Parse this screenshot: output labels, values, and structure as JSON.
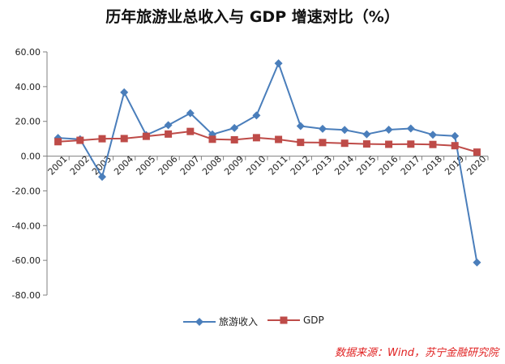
{
  "chart_data": {
    "type": "line",
    "title": "历年旅游业总收入与 GDP 增速对比（%）",
    "categories": [
      "2001",
      "2002",
      "2003",
      "2004",
      "2005",
      "2006",
      "2007",
      "2008",
      "2009",
      "2010",
      "2011",
      "2012",
      "2013",
      "2014",
      "2015",
      "2016",
      "2017",
      "2018",
      "2019",
      "2020"
    ],
    "ylim": [
      -80,
      60
    ],
    "yticks": [
      "60.00",
      "40.00",
      "20.00",
      "0.00",
      "-20.00",
      "-40.00",
      "-60.00",
      "-80.00"
    ],
    "ytick_values": [
      60,
      40,
      20,
      0,
      -20,
      -40,
      -60,
      -80
    ],
    "grid": false,
    "legend_position": "bottom",
    "series": [
      {
        "name": "旅游收入",
        "color": "#4a7ebb",
        "marker": "diamond",
        "values": [
          10.5,
          9.7,
          -11.9,
          36.7,
          12.1,
          17.8,
          24.7,
          12.5,
          16.2,
          23.4,
          53.4,
          17.3,
          15.7,
          15.1,
          12.6,
          15.2,
          15.9,
          12.3,
          11.6,
          -61.2
        ]
      },
      {
        "name": "GDP",
        "color": "#be4b48",
        "marker": "square",
        "values": [
          8.3,
          9.1,
          10.0,
          10.1,
          11.4,
          12.7,
          14.2,
          9.7,
          9.4,
          10.6,
          9.6,
          7.9,
          7.8,
          7.4,
          7.0,
          6.8,
          6.9,
          6.7,
          6.0,
          2.3
        ]
      }
    ]
  },
  "source_note": "数据来源：Wind，苏宁金融研究院"
}
